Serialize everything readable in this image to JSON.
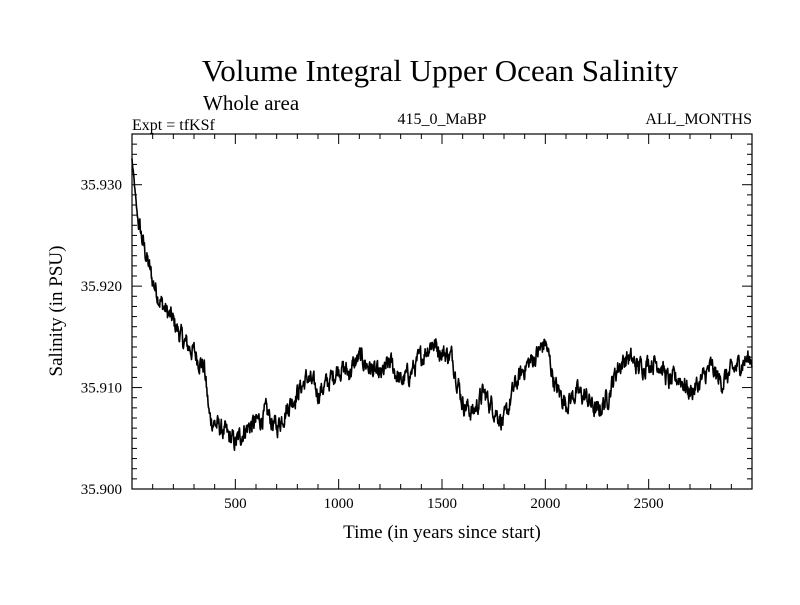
{
  "chart_data": {
    "type": "line",
    "title": "Volume Integral Upper Ocean Salinity",
    "subtitle": "Whole area",
    "header_left": "Expt = tfKSf",
    "header_center": "415_0_MaBP",
    "header_right": "ALL_MONTHS",
    "xlabel": "Time (in years since start)",
    "ylabel": "Salinity (in PSU)",
    "xlim": [
      0,
      3000
    ],
    "ylim": [
      35.9,
      35.935
    ],
    "x_ticks": [
      500,
      1000,
      1500,
      2000,
      2500
    ],
    "x_tick_labels": [
      "500",
      "1000",
      "1500",
      "2000",
      "2500"
    ],
    "y_ticks": [
      35.9,
      35.91,
      35.92,
      35.93
    ],
    "y_tick_labels": [
      "35.900",
      "35.910",
      "35.920",
      "35.930"
    ],
    "grid": false,
    "series": [
      {
        "name": "salinity",
        "color": "#000000",
        "x": [
          0,
          25,
          50,
          75,
          100,
          150,
          200,
          250,
          300,
          350,
          375,
          400,
          450,
          475,
          500,
          550,
          600,
          650,
          700,
          750,
          800,
          850,
          900,
          950,
          1000,
          1050,
          1100,
          1150,
          1200,
          1250,
          1300,
          1350,
          1400,
          1450,
          1500,
          1550,
          1600,
          1650,
          1700,
          1750,
          1800,
          1850,
          1900,
          1950,
          2000,
          2050,
          2100,
          2150,
          2200,
          2250,
          2300,
          2350,
          2400,
          2450,
          2500,
          2550,
          2600,
          2650,
          2700,
          2750,
          2800,
          2850,
          2900,
          2950,
          3000
        ],
        "values": [
          35.9325,
          35.927,
          35.9245,
          35.9225,
          35.9205,
          35.918,
          35.9165,
          35.9145,
          35.9135,
          35.912,
          35.907,
          35.9065,
          35.9055,
          35.905,
          35.9045,
          35.906,
          35.9065,
          35.9075,
          35.906,
          35.908,
          35.9095,
          35.911,
          35.9095,
          35.9105,
          35.912,
          35.9115,
          35.913,
          35.912,
          35.911,
          35.9125,
          35.9105,
          35.9115,
          35.913,
          35.9145,
          35.9135,
          35.913,
          35.9085,
          35.9075,
          35.9095,
          35.908,
          35.9065,
          35.91,
          35.912,
          35.913,
          35.9145,
          35.91,
          35.9085,
          35.9095,
          35.909,
          35.9075,
          35.909,
          35.912,
          35.913,
          35.912,
          35.9125,
          35.9125,
          35.9105,
          35.911,
          35.9095,
          35.9105,
          35.912,
          35.9105,
          35.9115,
          35.9125,
          35.913
        ]
      }
    ]
  }
}
